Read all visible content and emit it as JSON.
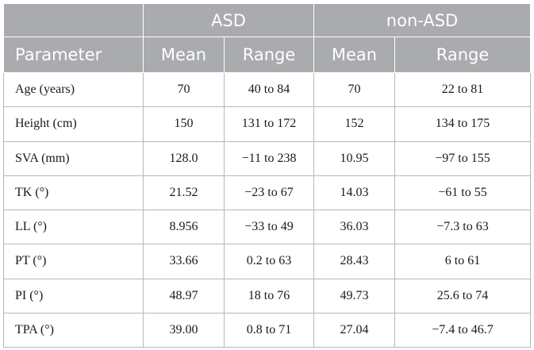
{
  "header": {
    "group_asd": "ASD",
    "group_non_asd": "non-ASD",
    "col_parameter": "Parameter",
    "col_mean_asd": "Mean",
    "col_range_asd": "Range",
    "col_mean_non": "Mean",
    "col_range_non": "Range"
  },
  "rows": [
    {
      "parameter": "Age (years)",
      "asd_mean": "70",
      "asd_range": "40 to 84",
      "non_mean": "70",
      "non_range": "22 to 81"
    },
    {
      "parameter": "Height (cm)",
      "asd_mean": "150",
      "asd_range": "131 to 172",
      "non_mean": "152",
      "non_range": "134 to 175"
    },
    {
      "parameter": "SVA (mm)",
      "asd_mean": "128.0",
      "asd_range": "−11 to 238",
      "non_mean": "10.95",
      "non_range": "−97 to 155"
    },
    {
      "parameter": "TK (°)",
      "asd_mean": "21.52",
      "asd_range": "−23 to 67",
      "non_mean": "14.03",
      "non_range": "−61 to 55"
    },
    {
      "parameter": "LL (°)",
      "asd_mean": "8.956",
      "asd_range": "−33 to 49",
      "non_mean": "36.03",
      "non_range": "−7.3 to 63"
    },
    {
      "parameter": "PT (°)",
      "asd_mean": "33.66",
      "asd_range": "0.2 to 63",
      "non_mean": "28.43",
      "non_range": "6 to 61"
    },
    {
      "parameter": "PI (°)",
      "asd_mean": "48.97",
      "asd_range": "18 to 76",
      "non_mean": "49.73",
      "non_range": "25.6 to 74"
    },
    {
      "parameter": "TPA (°)",
      "asd_mean": "39.00",
      "asd_range": "0.8 to 71",
      "non_mean": "27.04",
      "non_range": "−7.4 to 46.7"
    }
  ]
}
